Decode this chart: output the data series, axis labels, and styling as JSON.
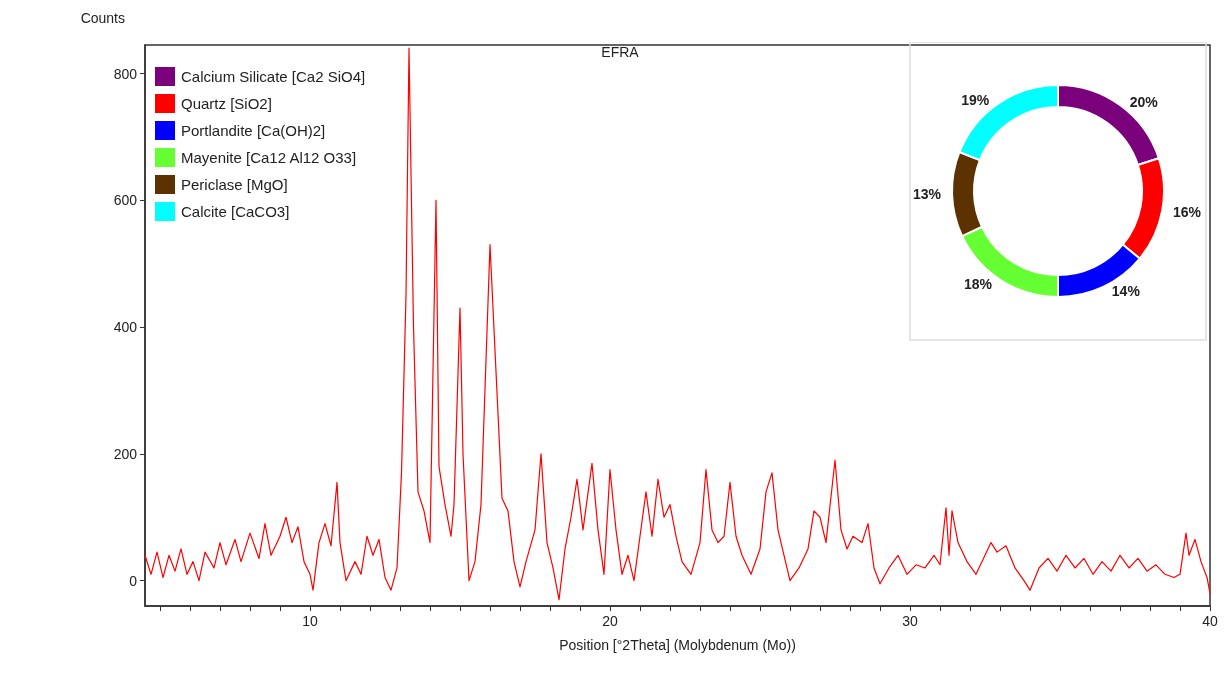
{
  "chart_data": [
    {
      "type": "line",
      "title": "EFRA",
      "xlabel": "Position [°2Theta] (Molybdenum (Mo))",
      "ylabel": "Counts",
      "xlim": [
        4.5,
        40
      ],
      "ylim": [
        -40,
        845
      ],
      "grid": false,
      "marker": "none",
      "line_style": "solid",
      "xticks": [
        {
          "value": 5,
          "label": null
        },
        {
          "value": 6,
          "label": null
        },
        {
          "value": 7,
          "label": null
        },
        {
          "value": 8,
          "label": null
        },
        {
          "value": 9,
          "label": null
        },
        10,
        {
          "value": 11,
          "label": null
        },
        {
          "value": 12,
          "label": null
        },
        {
          "value": 13,
          "label": null
        },
        {
          "value": 14,
          "label": null
        },
        {
          "value": 15,
          "label": null
        },
        {
          "value": 16,
          "label": null
        },
        {
          "value": 17,
          "label": null
        },
        {
          "value": 18,
          "label": null
        },
        {
          "value": 19,
          "label": null
        },
        20,
        {
          "value": 21,
          "label": null
        },
        {
          "value": 22,
          "label": null
        },
        {
          "value": 23,
          "label": null
        },
        {
          "value": 24,
          "label": null
        },
        {
          "value": 25,
          "label": null
        },
        {
          "value": 26,
          "label": null
        },
        {
          "value": 27,
          "label": null
        },
        {
          "value": 28,
          "label": null
        },
        {
          "value": 29,
          "label": null
        },
        30,
        {
          "value": 31,
          "label": null
        },
        {
          "value": 32,
          "label": null
        },
        {
          "value": 33,
          "label": null
        },
        {
          "value": 34,
          "label": null
        },
        {
          "value": 35,
          "label": null
        },
        {
          "value": 36,
          "label": null
        },
        {
          "value": 37,
          "label": null
        },
        {
          "value": 38,
          "label": null
        },
        {
          "value": 39,
          "label": null
        },
        40
      ],
      "yticks": [
        0,
        200,
        400,
        600,
        800
      ],
      "series": [
        {
          "color": "#ff0000",
          "x": [
            4.5,
            4.7,
            4.9,
            5.1,
            5.3,
            5.5,
            5.7,
            5.9,
            6.1,
            6.3,
            6.5,
            6.8,
            7.0,
            7.2,
            7.5,
            7.7,
            8.0,
            8.3,
            8.5,
            8.7,
            9.0,
            9.2,
            9.4,
            9.6,
            9.8,
            10.0,
            10.1,
            10.3,
            10.5,
            10.7,
            10.9,
            11.0,
            11.2,
            11.5,
            11.7,
            11.9,
            12.1,
            12.3,
            12.5,
            12.7,
            12.9,
            13.05,
            13.2,
            13.3,
            13.45,
            13.6,
            13.8,
            14.0,
            14.2,
            14.3,
            14.5,
            14.7,
            14.8,
            15.0,
            15.1,
            15.3,
            15.5,
            15.7,
            16.0,
            16.2,
            16.4,
            16.6,
            16.8,
            17.0,
            17.2,
            17.5,
            17.7,
            17.9,
            18.1,
            18.3,
            18.5,
            18.7,
            18.9,
            19.1,
            19.4,
            19.6,
            19.8,
            20.0,
            20.2,
            20.4,
            20.6,
            20.8,
            21.0,
            21.2,
            21.4,
            21.6,
            21.8,
            22.0,
            22.2,
            22.4,
            22.7,
            23.0,
            23.2,
            23.4,
            23.6,
            23.8,
            24.0,
            24.2,
            24.4,
            24.7,
            25.0,
            25.2,
            25.4,
            25.6,
            25.8,
            26.0,
            26.3,
            26.6,
            26.8,
            27.0,
            27.2,
            27.5,
            27.7,
            27.9,
            28.1,
            28.4,
            28.6,
            28.8,
            29.0,
            29.3,
            29.6,
            29.9,
            30.2,
            30.5,
            30.8,
            31.0,
            31.2,
            31.3,
            31.4,
            31.6,
            31.9,
            32.2,
            32.5,
            32.7,
            32.9,
            33.2,
            33.5,
            33.8,
            34.0,
            34.3,
            34.6,
            34.9,
            35.2,
            35.5,
            35.8,
            36.1,
            36.4,
            36.7,
            37.0,
            37.3,
            37.6,
            37.9,
            38.2,
            38.5,
            38.8,
            39.0,
            39.2,
            39.3,
            39.5,
            39.7,
            39.9,
            40.0
          ],
          "values": [
            40,
            10,
            45,
            5,
            40,
            15,
            50,
            10,
            30,
            0,
            45,
            20,
            60,
            25,
            65,
            30,
            75,
            35,
            90,
            40,
            70,
            100,
            60,
            85,
            30,
            10,
            -15,
            60,
            90,
            55,
            155,
            60,
            0,
            30,
            10,
            70,
            40,
            65,
            5,
            -15,
            20,
            170,
            450,
            840,
            400,
            140,
            110,
            60,
            600,
            180,
            120,
            70,
            120,
            430,
            200,
            0,
            30,
            120,
            530,
            330,
            130,
            110,
            30,
            -10,
            30,
            80,
            200,
            60,
            20,
            -30,
            50,
            100,
            160,
            80,
            185,
            80,
            10,
            175,
            80,
            10,
            40,
            0,
            70,
            140,
            70,
            160,
            100,
            120,
            70,
            30,
            10,
            60,
            175,
            80,
            60,
            70,
            155,
            70,
            40,
            10,
            50,
            140,
            170,
            80,
            40,
            0,
            20,
            50,
            110,
            100,
            60,
            190,
            80,
            50,
            70,
            60,
            90,
            20,
            -5,
            20,
            40,
            10,
            25,
            20,
            40,
            25,
            115,
            40,
            110,
            60,
            30,
            10,
            40,
            60,
            45,
            55,
            20,
            0,
            -15,
            20,
            35,
            15,
            40,
            20,
            35,
            10,
            30,
            15,
            40,
            20,
            35,
            15,
            25,
            10,
            5,
            10,
            75,
            40,
            65,
            30,
            5,
            -20
          ]
        }
      ]
    },
    {
      "type": "donut",
      "legend": "top left",
      "categories": [
        "Calcium Silicate [Ca2 SiO4]",
        "Quartz [SiO2]",
        "Portlandite [Ca(OH)2]",
        "Mayenite [Ca12 Al12 O33]",
        "Periclase [MgO]",
        "Calcite [CaCO3]"
      ],
      "values": [
        20,
        16,
        14,
        18,
        13,
        19
      ],
      "colors": [
        "#7b007b",
        "#ff0000",
        "#0000ff",
        "#66ff33",
        "#5c3300",
        "#00ffff"
      ],
      "value_labels": [
        "20%",
        "16%",
        "14%",
        "18%",
        "13%",
        "19%"
      ]
    }
  ]
}
